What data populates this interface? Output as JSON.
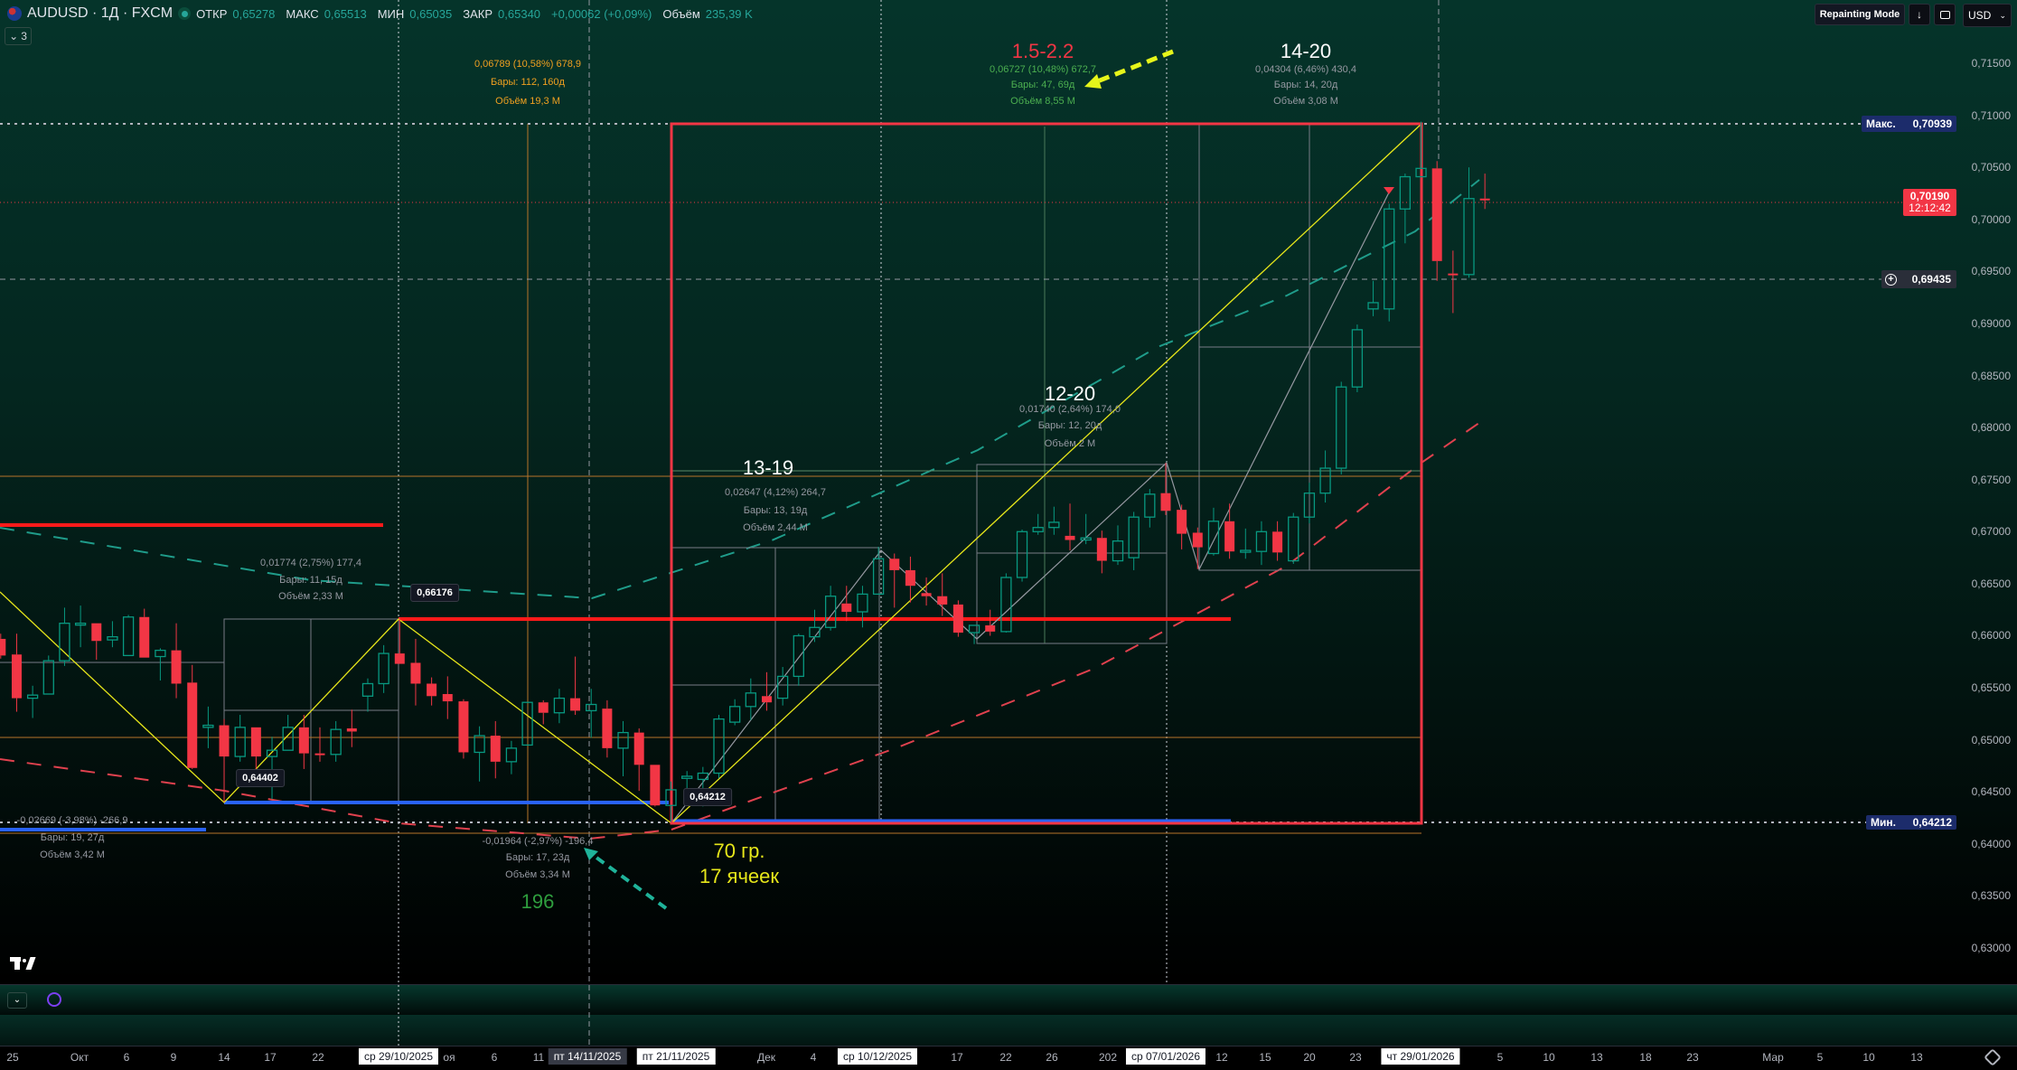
{
  "header": {
    "symbol": "AUDUSD · 1Д · FXCM",
    "open_label": "ОТКР",
    "open": "0,65278",
    "high_label": "МАКС",
    "high": "0,65513",
    "low_label": "МИН",
    "low": "0,65035",
    "close_label": "ЗАКР",
    "close": "0,65340",
    "change": "+0,00062 (+0,09%)",
    "volume_label": "Объём",
    "volume": "235,39 K",
    "indicators_count": "3"
  },
  "top_right": {
    "repainting_label": "Repainting Mode",
    "currency": "USD"
  },
  "colors": {
    "up": "#089981",
    "down": "#f23645",
    "drawing_red": "#f23645",
    "drawing_yellow": "#e6e61a",
    "blue_line": "#2962ff",
    "orange_line": "#b8742a"
  },
  "annotations": {
    "orange_stats": [
      "0,06789 (10,58%) 678,9",
      "Бары: 112, 160д",
      "Объём 19,3 M"
    ],
    "title_15_22": "1.5-2.2",
    "stats_15_22": [
      "0,06727 (10,48%) 672,7",
      "Бары: 47, 69д",
      "Объём 8,55 M"
    ],
    "title_14_20": "14-20",
    "stats_14_20": [
      "0,04304 (6,46%) 430,4",
      "Бары: 14, 20д",
      "Объём 3,08 M"
    ],
    "title_12_20": "12-20",
    "stats_12_20": [
      "0,01740 (2,64%) 174,0",
      "Бары: 12, 20д",
      "Объём 2 M"
    ],
    "title_13_19": "13-19",
    "stats_13_19": [
      "0,02647 (4,12%) 264,7",
      "Бары: 13, 19д",
      "Объём 2,44 M"
    ],
    "stats_a": [
      "0,01774 (2,75%) 177,4",
      "Бары: 11, 15д",
      "Объём 2,33 M"
    ],
    "stats_b": [
      "-0,02669 (-3,98%) -266,9",
      "Бары: 19, 27д",
      "Объём 3,42 M"
    ],
    "stats_c": [
      "-0,01964 (-2,97%) -196,4",
      "Бары: 17, 23д",
      "Объём 3,34 M"
    ],
    "note_196": "196",
    "note_70": "70 гр.",
    "note_17": "17 ячеек",
    "tag_high": "0,66176",
    "tag_low1": "0,64402",
    "tag_low2": "0,64212"
  },
  "price_axis": {
    "ticks": [
      "0,71500",
      "0,71000",
      "0,70500",
      "0,70000",
      "0,69500",
      "0,69000",
      "0,68500",
      "0,68000",
      "0,67500",
      "0,67000",
      "0,66500",
      "0,66000",
      "0,65500",
      "0,65000",
      "0,64500",
      "0,64000",
      "0,63500",
      "0,63000"
    ],
    "max_label": "Макс.",
    "max_value": "0,70939",
    "last_price": "0,70190",
    "countdown": "12:12:42",
    "crosshair_price": "0,69435",
    "min_label": "Мин.",
    "min_value": "0,64212"
  },
  "time_axis": {
    "labels": [
      "25",
      "Окт",
      "6",
      "9",
      "14",
      "17",
      "22",
      "ср 29/10/2025",
      "оя",
      "6",
      "11",
      "пт 14/11/2025",
      "пт 21/11/2025",
      "Дек",
      "4",
      "ср 10/12/2025",
      "17",
      "22",
      "26",
      "202",
      "ср 07/01/2026",
      "12",
      "15",
      "20",
      "23",
      "чт 29/01/2026",
      "5",
      "10",
      "13",
      "18",
      "23",
      "Мар",
      "5",
      "10",
      "13"
    ]
  },
  "chart_data": {
    "type": "candlestick",
    "symbol": "AUDUSD",
    "interval": "1Д",
    "ylim": [
      0.627,
      0.7175
    ],
    "ohlc_fields": [
      "open",
      "high",
      "low",
      "close"
    ],
    "candles": [
      [
        0.6597,
        0.6602,
        0.6578,
        0.6581
      ],
      [
        0.6582,
        0.6602,
        0.6527,
        0.654
      ],
      [
        0.654,
        0.6552,
        0.6521,
        0.6543
      ],
      [
        0.6544,
        0.6581,
        0.6544,
        0.6576
      ],
      [
        0.6576,
        0.6627,
        0.6571,
        0.6612
      ],
      [
        0.6611,
        0.6629,
        0.6589,
        0.6612
      ],
      [
        0.6612,
        0.6612,
        0.6577,
        0.6595
      ],
      [
        0.6596,
        0.6614,
        0.6589,
        0.6599
      ],
      [
        0.6581,
        0.662,
        0.6581,
        0.6618
      ],
      [
        0.6618,
        0.6626,
        0.6579,
        0.6579
      ],
      [
        0.658,
        0.6588,
        0.6557,
        0.6586
      ],
      [
        0.6586,
        0.6612,
        0.654,
        0.6554
      ],
      [
        0.6555,
        0.6572,
        0.6472,
        0.6473
      ],
      [
        0.6512,
        0.6532,
        0.6492,
        0.6514
      ],
      [
        0.6514,
        0.652,
        0.64402,
        0.6484
      ],
      [
        0.6484,
        0.6524,
        0.6479,
        0.6512
      ],
      [
        0.6512,
        0.6512,
        0.6472,
        0.6484
      ],
      [
        0.6484,
        0.6503,
        0.6443,
        0.649
      ],
      [
        0.649,
        0.6524,
        0.649,
        0.6512
      ],
      [
        0.6512,
        0.6524,
        0.6472,
        0.6487
      ],
      [
        0.6487,
        0.6512,
        0.6479,
        0.6486
      ],
      [
        0.6486,
        0.6518,
        0.6479,
        0.651
      ],
      [
        0.6511,
        0.6529,
        0.6493,
        0.6508
      ],
      [
        0.6542,
        0.6559,
        0.6527,
        0.6554
      ],
      [
        0.6554,
        0.6591,
        0.6545,
        0.6583
      ],
      [
        0.6583,
        0.66176,
        0.6573,
        0.6573
      ],
      [
        0.6574,
        0.6597,
        0.6533,
        0.6554
      ],
      [
        0.6554,
        0.656,
        0.6533,
        0.6542
      ],
      [
        0.6544,
        0.6561,
        0.652,
        0.6537
      ],
      [
        0.6537,
        0.6539,
        0.6482,
        0.6488
      ],
      [
        0.6488,
        0.6513,
        0.646,
        0.6504
      ],
      [
        0.6504,
        0.6518,
        0.6463,
        0.6479
      ],
      [
        0.6479,
        0.6499,
        0.6467,
        0.6492
      ],
      [
        0.6495,
        0.6536,
        0.6495,
        0.6536
      ],
      [
        0.6536,
        0.6538,
        0.6515,
        0.6526
      ],
      [
        0.6526,
        0.6549,
        0.6516,
        0.654
      ],
      [
        0.654,
        0.658,
        0.6524,
        0.6528
      ],
      [
        0.6528,
        0.6549,
        0.6502,
        0.6534
      ],
      [
        0.653,
        0.6538,
        0.6483,
        0.6492
      ],
      [
        0.6492,
        0.6518,
        0.6465,
        0.6507
      ],
      [
        0.6507,
        0.6511,
        0.6451,
        0.6476
      ],
      [
        0.6476,
        0.6476,
        0.6436,
        0.6437
      ],
      [
        0.6437,
        0.646,
        0.64212,
        0.6452
      ],
      [
        0.6463,
        0.647,
        0.6437,
        0.6465
      ],
      [
        0.6462,
        0.6474,
        0.6436,
        0.6468
      ],
      [
        0.6468,
        0.6524,
        0.6463,
        0.652
      ],
      [
        0.6517,
        0.6539,
        0.6514,
        0.6532
      ],
      [
        0.6532,
        0.6559,
        0.6519,
        0.6545
      ],
      [
        0.6542,
        0.6565,
        0.6528,
        0.6536
      ],
      [
        0.654,
        0.657,
        0.6533,
        0.6561
      ],
      [
        0.6561,
        0.6602,
        0.6552,
        0.66
      ],
      [
        0.6599,
        0.6625,
        0.6594,
        0.6608
      ],
      [
        0.6608,
        0.6648,
        0.6605,
        0.6638
      ],
      [
        0.6631,
        0.6648,
        0.6614,
        0.6623
      ],
      [
        0.6623,
        0.6648,
        0.6608,
        0.664
      ],
      [
        0.664,
        0.66855,
        0.664,
        0.6674
      ],
      [
        0.6674,
        0.6679,
        0.6627,
        0.6663
      ],
      [
        0.6663,
        0.6676,
        0.6632,
        0.6648
      ],
      [
        0.6641,
        0.6656,
        0.6629,
        0.6638
      ],
      [
        0.6638,
        0.666,
        0.6619,
        0.663
      ],
      [
        0.663,
        0.6634,
        0.6599,
        0.6603
      ],
      [
        0.6603,
        0.661,
        0.6592,
        0.661
      ],
      [
        0.661,
        0.6625,
        0.66,
        0.6604
      ],
      [
        0.6604,
        0.666,
        0.6603,
        0.6656
      ],
      [
        0.6656,
        0.6702,
        0.6652,
        0.67
      ],
      [
        0.67,
        0.6717,
        0.6697,
        0.6704
      ],
      [
        0.6704,
        0.6724,
        0.6697,
        0.6709
      ],
      [
        0.6696,
        0.6727,
        0.6682,
        0.6692
      ],
      [
        0.6692,
        0.6717,
        0.6688,
        0.6694
      ],
      [
        0.6694,
        0.6701,
        0.666,
        0.6672
      ],
      [
        0.6672,
        0.6706,
        0.6668,
        0.6691
      ],
      [
        0.6675,
        0.6719,
        0.6663,
        0.6714
      ],
      [
        0.6714,
        0.6741,
        0.6704,
        0.6736
      ],
      [
        0.6737,
        0.6766,
        0.6716,
        0.672
      ],
      [
        0.6721,
        0.6726,
        0.6683,
        0.6698
      ],
      [
        0.6699,
        0.6704,
        0.6664,
        0.6685
      ],
      [
        0.6679,
        0.6723,
        0.6677,
        0.671
      ],
      [
        0.671,
        0.6727,
        0.6674,
        0.6681
      ],
      [
        0.6681,
        0.6703,
        0.6674,
        0.6682
      ],
      [
        0.6681,
        0.671,
        0.6668,
        0.67
      ],
      [
        0.67,
        0.671,
        0.6672,
        0.668
      ],
      [
        0.6672,
        0.6718,
        0.6669,
        0.6714
      ],
      [
        0.6714,
        0.6747,
        0.6708,
        0.6737
      ],
      [
        0.6737,
        0.6778,
        0.6728,
        0.6761
      ],
      [
        0.6761,
        0.6844,
        0.6755,
        0.6839
      ],
      [
        0.6839,
        0.6899,
        0.6834,
        0.6894
      ],
      [
        0.6914,
        0.6941,
        0.6907,
        0.692
      ],
      [
        0.6914,
        0.7015,
        0.6902,
        0.701
      ],
      [
        0.701,
        0.7044,
        0.6977,
        0.7041
      ],
      [
        0.7041,
        0.70939,
        0.7041,
        0.7049
      ],
      [
        0.7049,
        0.7056,
        0.6941,
        0.696
      ],
      [
        0.6948,
        0.697,
        0.691,
        0.6947
      ],
      [
        0.6947,
        0.705,
        0.6944,
        0.702
      ],
      [
        0.702,
        0.7044,
        0.701,
        0.7019
      ]
    ]
  }
}
